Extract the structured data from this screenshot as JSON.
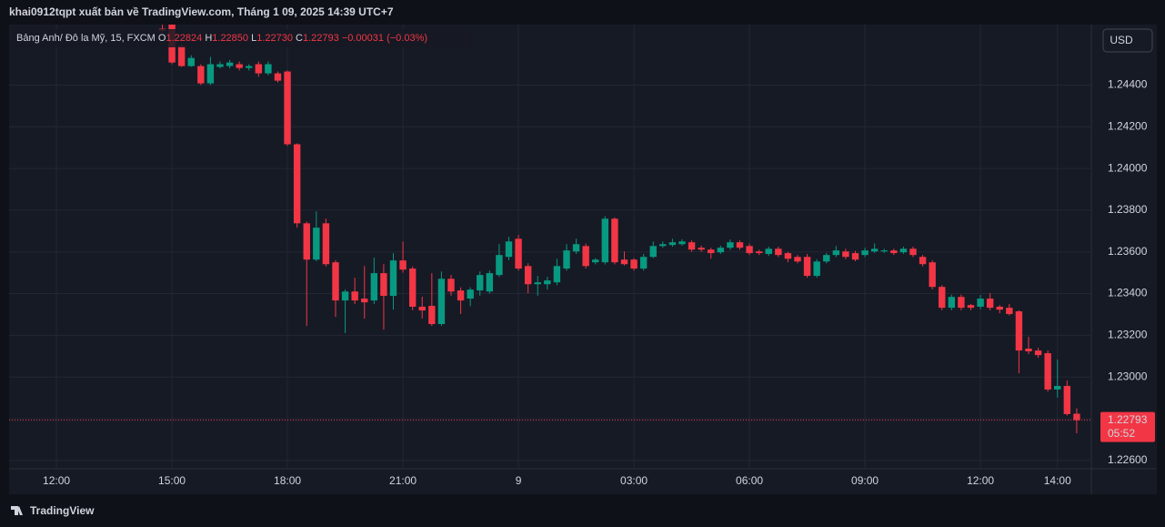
{
  "header": "khai0912tqpt xuất bản về TradingView.com, Tháng 1 09, 2025 14:39 UTC+7",
  "legend": {
    "symbol": "Bảng Anh/ Đô la Mỹ, 15, FXCM",
    "o_label": "O",
    "o": "1.22824",
    "h_label": "H",
    "h": "1.22850",
    "l_label": "L",
    "l": "1.22730",
    "c_label": "C",
    "c": "1.22793",
    "change": "−0.00031 (−0.03%)"
  },
  "currency_button": "USD",
  "footer": "TradingView",
  "chart_data": {
    "type": "candlestick",
    "grid": true,
    "up_color": "#089981",
    "down_color": "#f23645",
    "xlim": [
      10.77,
      38.88
    ],
    "ylim": [
      1.2256,
      1.2469
    ],
    "xticks": [
      {
        "value": 12,
        "label": "12:00"
      },
      {
        "value": 15,
        "label": "15:00"
      },
      {
        "value": 18,
        "label": "18:00"
      },
      {
        "value": 21,
        "label": "21:00"
      },
      {
        "value": 24,
        "label": "9"
      },
      {
        "value": 27,
        "label": "03:00"
      },
      {
        "value": 30,
        "label": "06:00"
      },
      {
        "value": 33,
        "label": "09:00"
      },
      {
        "value": 36,
        "label": "12:00"
      },
      {
        "value": 38,
        "label": "14:00"
      }
    ],
    "yticks": [
      {
        "value": 1.226,
        "label": "1.22600"
      },
      {
        "value": 1.228,
        "label": "1.22800"
      },
      {
        "value": 1.23,
        "label": "1.23000"
      },
      {
        "value": 1.232,
        "label": "1.23200"
      },
      {
        "value": 1.234,
        "label": "1.23400"
      },
      {
        "value": 1.236,
        "label": "1.23600"
      },
      {
        "value": 1.238,
        "label": "1.23800"
      },
      {
        "value": 1.24,
        "label": "1.24000"
      },
      {
        "value": 1.242,
        "label": "1.24200"
      },
      {
        "value": 1.244,
        "label": "1.24400"
      }
    ],
    "last_price": {
      "value": 1.22793,
      "label": "1.22793"
    },
    "countdown": "05:52",
    "x": [
      14.75,
      15,
      15.25,
      15.5,
      15.75,
      16,
      16.25,
      16.5,
      16.75,
      17,
      17.25,
      17.5,
      17.75,
      18,
      18.25,
      18.5,
      18.75,
      19,
      19.25,
      19.5,
      19.75,
      20,
      20.25,
      20.5,
      20.75,
      21,
      21.25,
      21.5,
      21.75,
      22,
      22.25,
      22.5,
      22.75,
      23,
      23.25,
      23.5,
      23.75,
      24,
      24.25,
      24.5,
      24.75,
      25,
      25.25,
      25.5,
      25.75,
      26,
      26.25,
      26.5,
      26.75,
      27,
      27.25,
      27.5,
      27.75,
      28,
      28.25,
      28.5,
      28.75,
      29,
      29.25,
      29.5,
      29.75,
      30,
      30.25,
      30.5,
      30.75,
      31,
      31.25,
      31.5,
      31.75,
      32,
      32.25,
      32.5,
      32.75,
      33,
      33.25,
      33.5,
      33.75,
      34,
      34.25,
      34.5,
      34.75,
      35,
      35.25,
      35.5,
      35.75,
      36,
      36.25,
      36.5,
      36.75,
      37,
      37.25,
      37.5,
      37.75,
      38,
      38.25,
      38.5
    ],
    "open": [
      1.2467,
      1.2469,
      1.24587,
      1.24491,
      1.24491,
      1.24408,
      1.24487,
      1.24491,
      1.245,
      1.24482,
      1.245,
      1.24456,
      1.24456,
      1.24465,
      1.24116,
      1.23737,
      1.23563,
      1.23737,
      1.2355,
      1.23367,
      1.2341,
      1.23376,
      1.23367,
      1.23498,
      1.23389,
      1.23559,
      1.2352,
      1.23337,
      1.23341,
      1.23254,
      1.23471,
      1.23415,
      1.23376,
      1.23415,
      1.2341,
      1.23489,
      1.23576,
      1.23663,
      1.23532,
      1.23445,
      1.23445,
      1.23454,
      1.2352,
      1.23602,
      1.23628,
      1.2355,
      1.2355,
      1.23759,
      1.23563,
      1.23563,
      1.2352,
      1.23576,
      1.23628,
      1.23633,
      1.23637,
      1.23646,
      1.2362,
      1.23611,
      1.23598,
      1.2362,
      1.23646,
      1.23628,
      1.23602,
      1.2359,
      1.23615,
      1.23594,
      1.23576,
      1.23576,
      1.23485,
      1.23554,
      1.23585,
      1.23602,
      1.23594,
      1.23585,
      1.23602,
      1.23602,
      1.23607,
      1.23598,
      1.23615,
      1.23576,
      1.2355,
      1.23432,
      1.23332,
      1.23384,
      1.23345,
      1.23337,
      1.23376,
      1.23337,
      1.23332,
      1.23315,
      1.23136,
      1.23127,
      1.23114,
      1.2294,
      1.22957,
      1.22824
    ],
    "high": [
      1.2469,
      1.2469,
      1.24596,
      1.24543,
      1.245,
      1.24535,
      1.24513,
      1.2452,
      1.24513,
      1.245,
      1.24513,
      1.24513,
      1.24465,
      1.2447,
      1.2412,
      1.23745,
      1.23794,
      1.2376,
      1.2356,
      1.2342,
      1.23476,
      1.23532,
      1.23572,
      1.23541,
      1.23594,
      1.2365,
      1.2353,
      1.23385,
      1.23498,
      1.23506,
      1.23489,
      1.2343,
      1.2343,
      1.23506,
      1.2351,
      1.23637,
      1.23672,
      1.23681,
      1.23545,
      1.23485,
      1.2348,
      1.23567,
      1.23637,
      1.23663,
      1.2364,
      1.2357,
      1.23772,
      1.23765,
      1.23602,
      1.2357,
      1.2359,
      1.2365,
      1.2365,
      1.23663,
      1.2366,
      1.23655,
      1.2363,
      1.2362,
      1.2363,
      1.23659,
      1.23655,
      1.2364,
      1.2361,
      1.23625,
      1.23625,
      1.236,
      1.23585,
      1.2359,
      1.23565,
      1.23595,
      1.23628,
      1.23615,
      1.23605,
      1.2362,
      1.23641,
      1.23615,
      1.23615,
      1.23625,
      1.23625,
      1.23585,
      1.2356,
      1.2344,
      1.23395,
      1.23395,
      1.2335,
      1.23393,
      1.23402,
      1.23345,
      1.2335,
      1.2332,
      1.23193,
      1.2314,
      1.23127,
      1.23084,
      1.22983,
      1.2285
    ],
    "low": [
      1.2465,
      1.245,
      1.24487,
      1.24487,
      1.244,
      1.244,
      1.2448,
      1.2448,
      1.2447,
      1.2447,
      1.2444,
      1.24447,
      1.24412,
      1.24108,
      1.23716,
      1.23245,
      1.23555,
      1.2353,
      1.23288,
      1.2321,
      1.2335,
      1.2328,
      1.2335,
      1.23227,
      1.23323,
      1.235,
      1.2332,
      1.2328,
      1.23245,
      1.23245,
      1.2339,
      1.23302,
      1.2334,
      1.2339,
      1.234,
      1.2348,
      1.2356,
      1.2351,
      1.23402,
      1.2339,
      1.23419,
      1.2344,
      1.2351,
      1.2359,
      1.2352,
      1.2354,
      1.2354,
      1.2354,
      1.23535,
      1.2351,
      1.2351,
      1.2357,
      1.2362,
      1.23625,
      1.2363,
      1.236,
      1.236,
      1.23567,
      1.2359,
      1.2361,
      1.2361,
      1.23585,
      1.23585,
      1.2358,
      1.23575,
      1.2355,
      1.23545,
      1.23476,
      1.23476,
      1.23545,
      1.23575,
      1.23565,
      1.23555,
      1.23575,
      1.23595,
      1.23595,
      1.23585,
      1.2359,
      1.23575,
      1.2353,
      1.2342,
      1.2332,
      1.2332,
      1.2332,
      1.2332,
      1.23325,
      1.2332,
      1.23306,
      1.23295,
      1.23018,
      1.2311,
      1.23092,
      1.2293,
      1.22901,
      1.22815,
      1.2273
    ],
    "close": [
      1.2466,
      1.24508,
      1.24491,
      1.2453,
      1.24408,
      1.245,
      1.245,
      1.24508,
      1.24482,
      1.24491,
      1.24456,
      1.245,
      1.24421,
      1.24116,
      1.23737,
      1.23563,
      1.23716,
      1.23541,
      1.23367,
      1.2341,
      1.23367,
      1.23358,
      1.23498,
      1.23389,
      1.23559,
      1.23515,
      1.23337,
      1.23319,
      1.23254,
      1.23471,
      1.2341,
      1.23367,
      1.23419,
      1.23489,
      1.23498,
      1.23585,
      1.2365,
      1.2352,
      1.23445,
      1.23454,
      1.23463,
      1.23532,
      1.23607,
      1.23637,
      1.23532,
      1.23563,
      1.23759,
      1.2355,
      1.23541,
      1.2352,
      1.23576,
      1.23628,
      1.23637,
      1.23646,
      1.2365,
      1.23611,
      1.23611,
      1.23594,
      1.2362,
      1.23646,
      1.2362,
      1.23594,
      1.23594,
      1.23615,
      1.23585,
      1.23567,
      1.23554,
      1.23485,
      1.23554,
      1.23585,
      1.23607,
      1.23576,
      1.23563,
      1.23607,
      1.23615,
      1.23607,
      1.23594,
      1.23615,
      1.23585,
      1.23541,
      1.23432,
      1.23332,
      1.23384,
      1.23332,
      1.23332,
      1.23376,
      1.23332,
      1.23323,
      1.23302,
      1.23127,
      1.23123,
      1.23105,
      1.2294,
      1.22957,
      1.22822,
      1.22793
    ]
  }
}
